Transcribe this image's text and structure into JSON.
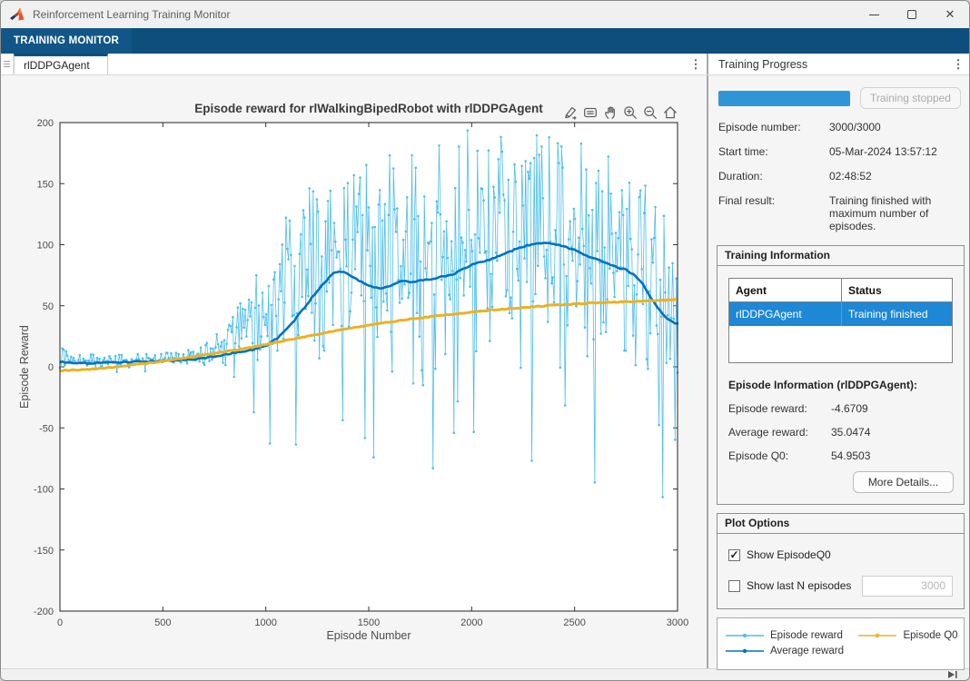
{
  "icons": {
    "menu_dots": "⋮",
    "check": "✓",
    "close_glyph": "✕"
  },
  "window": {
    "title": "Reinforcement Learning Training Monitor"
  },
  "ribbon": {
    "tab_label": "TRAINING MONITOR"
  },
  "doc_tab": {
    "label": "rlDDPGAgent"
  },
  "right_panel": {
    "header": "Training Progress",
    "progress": {
      "percent": 100,
      "button_label": "Training stopped"
    },
    "summary": [
      {
        "label": "Episode number:",
        "value": "3000/3000"
      },
      {
        "label": "Start time:",
        "value": "05-Mar-2024 13:57:12"
      },
      {
        "label": "Duration:",
        "value": "02:48:52"
      },
      {
        "label": "Final result:",
        "value": "Training finished with maximum number of episodes."
      }
    ],
    "training_information": {
      "title": "Training Information",
      "table": {
        "headers": [
          "Agent",
          "Status"
        ],
        "rows": [
          {
            "agent": "rlDDPGAgent",
            "status": "Training finished",
            "selected": true
          }
        ]
      },
      "episode_info_title": "Episode Information (rlDDPGAgent):",
      "episode_info": [
        {
          "label": "Episode reward:",
          "value": "-4.6709"
        },
        {
          "label": "Average reward:",
          "value": "35.0474"
        },
        {
          "label": "Episode Q0:",
          "value": "54.9503"
        }
      ],
      "more_details_label": "More Details..."
    },
    "plot_options": {
      "title": "Plot Options",
      "options": [
        {
          "label": "Show EpisodeQ0",
          "checked": true
        },
        {
          "label": "Show last N episodes",
          "checked": false,
          "input_value": "3000",
          "input_disabled": true
        }
      ]
    },
    "legend": [
      {
        "label": "Episode reward",
        "color": "#4DBEEE"
      },
      {
        "label": "Average reward",
        "color": "#0072BD"
      },
      {
        "label": "Episode Q0",
        "color": "#EDB120"
      }
    ]
  },
  "chart_data": {
    "type": "line",
    "title": "Episode reward for rlWalkingBipedRobot with rlDDPGAgent",
    "xlabel": "Episode Number",
    "ylabel": "Episode Reward",
    "xlim": [
      0,
      3000
    ],
    "ylim": [
      -200,
      200
    ],
    "xticks": [
      0,
      500,
      1000,
      1500,
      2000,
      2500,
      3000
    ],
    "yticks": [
      -200,
      -150,
      -100,
      -50,
      0,
      50,
      100,
      150,
      200
    ],
    "grid": false,
    "legend_position": "external-bottom-right-panel",
    "series": [
      {
        "name": "Episode reward",
        "color": "#4DBEEE",
        "style": "noisy-line-with-point-markers",
        "seed": 9,
        "step": 6,
        "envelope": [
          [
            0,
            -12,
            16
          ],
          [
            100,
            -5,
            10
          ],
          [
            300,
            -4,
            10
          ],
          [
            550,
            -3,
            12
          ],
          [
            700,
            -7,
            18
          ],
          [
            800,
            -14,
            34
          ],
          [
            880,
            -18,
            55
          ],
          [
            950,
            -45,
            85
          ],
          [
            1050,
            -85,
            120
          ],
          [
            1150,
            -65,
            140
          ],
          [
            1250,
            -95,
            150
          ],
          [
            1400,
            -75,
            168
          ],
          [
            1550,
            -105,
            182
          ],
          [
            1700,
            -125,
            172
          ],
          [
            1850,
            -85,
            190
          ],
          [
            2000,
            -75,
            194
          ],
          [
            2150,
            -95,
            195
          ],
          [
            2300,
            -85,
            190
          ],
          [
            2450,
            -105,
            186
          ],
          [
            2600,
            -95,
            180
          ],
          [
            2750,
            -105,
            178
          ],
          [
            2870,
            -135,
            172
          ],
          [
            2950,
            -158,
            176
          ],
          [
            3000,
            -80,
            170
          ]
        ],
        "last_value": -4.6709
      },
      {
        "name": "Average reward",
        "color": "#0072BD",
        "style": "smooth-line",
        "points": [
          [
            0,
            4
          ],
          [
            120,
            3
          ],
          [
            250,
            3.5
          ],
          [
            400,
            4.5
          ],
          [
            550,
            5
          ],
          [
            650,
            6
          ],
          [
            750,
            8.5
          ],
          [
            850,
            11.5
          ],
          [
            950,
            14.5
          ],
          [
            1000,
            17
          ],
          [
            1060,
            24
          ],
          [
            1120,
            34
          ],
          [
            1180,
            47
          ],
          [
            1240,
            60
          ],
          [
            1290,
            70
          ],
          [
            1330,
            77
          ],
          [
            1370,
            78
          ],
          [
            1410,
            75
          ],
          [
            1460,
            70
          ],
          [
            1510,
            66
          ],
          [
            1560,
            64
          ],
          [
            1610,
            67
          ],
          [
            1660,
            70
          ],
          [
            1710,
            69.5
          ],
          [
            1760,
            71
          ],
          [
            1810,
            72
          ],
          [
            1860,
            74
          ],
          [
            1910,
            76
          ],
          [
            1960,
            80
          ],
          [
            2010,
            84
          ],
          [
            2060,
            86.5
          ],
          [
            2110,
            89
          ],
          [
            2160,
            93
          ],
          [
            2210,
            96
          ],
          [
            2260,
            99
          ],
          [
            2310,
            101
          ],
          [
            2360,
            102
          ],
          [
            2410,
            100
          ],
          [
            2460,
            98
          ],
          [
            2510,
            95
          ],
          [
            2560,
            91
          ],
          [
            2610,
            88
          ],
          [
            2660,
            85
          ],
          [
            2710,
            81
          ],
          [
            2750,
            79.5
          ],
          [
            2790,
            75
          ],
          [
            2830,
            68
          ],
          [
            2870,
            57
          ],
          [
            2910,
            47
          ],
          [
            2945,
            40
          ],
          [
            2975,
            36.5
          ],
          [
            3000,
            35.05
          ]
        ],
        "last_value": 35.0474
      },
      {
        "name": "Episode Q0",
        "color": "#EDB120",
        "style": "smooth-line",
        "points": [
          [
            0,
            -3
          ],
          [
            150,
            -2
          ],
          [
            300,
            0.5
          ],
          [
            450,
            3.5
          ],
          [
            600,
            7
          ],
          [
            750,
            11
          ],
          [
            900,
            15
          ],
          [
            1050,
            20
          ],
          [
            1200,
            25
          ],
          [
            1350,
            30
          ],
          [
            1500,
            34
          ],
          [
            1650,
            38
          ],
          [
            1800,
            41
          ],
          [
            1950,
            44
          ],
          [
            2100,
            46.5
          ],
          [
            2250,
            48.5
          ],
          [
            2400,
            50.5
          ],
          [
            2550,
            52
          ],
          [
            2700,
            53
          ],
          [
            2850,
            54
          ],
          [
            3000,
            54.95
          ]
        ],
        "last_value": 54.9503
      }
    ]
  },
  "axes_toolbar": [
    "export-icon",
    "datatips-icon",
    "pan-icon",
    "zoom-in-icon",
    "zoom-out-icon",
    "home-icon"
  ],
  "statusbar": {
    "collapse_icon": "collapse-right-panel"
  }
}
